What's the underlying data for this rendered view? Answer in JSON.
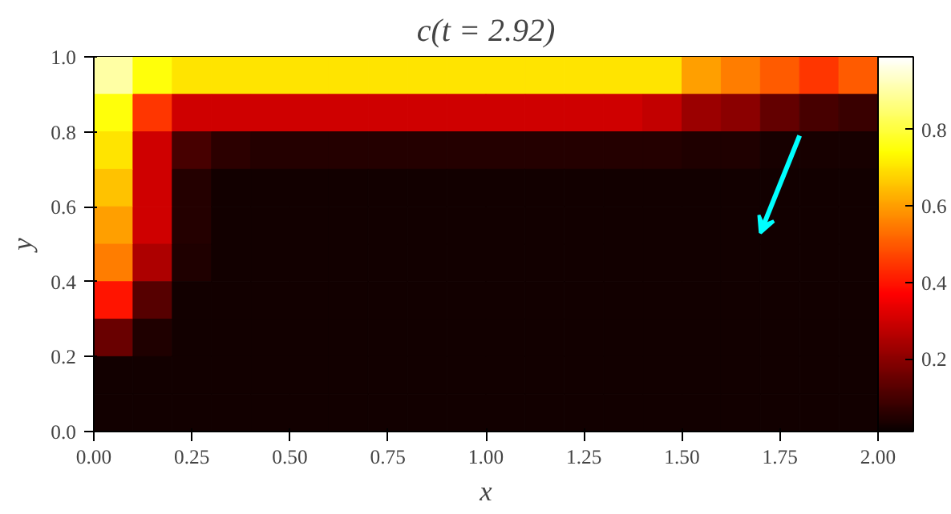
{
  "chart_data": {
    "type": "heatmap",
    "title": "c(t = 2.92)",
    "xlabel": "x",
    "ylabel": "y",
    "x": [
      0.05,
      0.15,
      0.25,
      0.35,
      0.45,
      0.55,
      0.65,
      0.75,
      0.85,
      0.95,
      1.05,
      1.15,
      1.25,
      1.35,
      1.45,
      1.55,
      1.65,
      1.75,
      1.85,
      1.95
    ],
    "y": [
      0.95,
      0.85,
      0.75,
      0.65,
      0.55,
      0.45,
      0.35,
      0.25,
      0.15,
      0.05
    ],
    "xlim": [
      0,
      2
    ],
    "ylim": [
      0,
      1
    ],
    "xticks": [
      {
        "value": 0,
        "label": "0.00"
      },
      {
        "value": 0.25,
        "label": "0.25"
      },
      {
        "value": 0.5,
        "label": "0.50"
      },
      {
        "value": 0.75,
        "label": "0.75"
      },
      {
        "value": 1,
        "label": "1.00"
      },
      {
        "value": 1.25,
        "label": "1.25"
      },
      {
        "value": 1.5,
        "label": "1.50"
      },
      {
        "value": 1.75,
        "label": "1.75"
      },
      {
        "value": 2,
        "label": "2.00"
      }
    ],
    "yticks": [
      {
        "value": 0,
        "label": "0.0"
      },
      {
        "value": 0.2,
        "label": "0.2"
      },
      {
        "value": 0.4,
        "label": "0.4"
      },
      {
        "value": 0.6,
        "label": "0.6"
      },
      {
        "value": 0.8,
        "label": "0.8"
      },
      {
        "value": 1,
        "label": "1.0"
      }
    ],
    "clim": [
      0.01,
      0.99
    ],
    "cticks": [
      0.2,
      0.4,
      0.6,
      0.8
    ],
    "cells": [
      [
        0.9,
        0.75,
        0.7,
        0.7,
        0.7,
        0.7,
        0.7,
        0.7,
        0.7,
        0.7,
        0.7,
        0.7,
        0.7,
        0.7,
        0.7,
        0.6,
        0.55,
        0.5,
        0.45,
        0.5
      ],
      [
        0.75,
        0.45,
        0.3,
        0.3,
        0.3,
        0.3,
        0.3,
        0.3,
        0.3,
        0.3,
        0.3,
        0.3,
        0.3,
        0.3,
        0.28,
        0.22,
        0.2,
        0.14,
        0.1,
        0.08
      ],
      [
        0.7,
        0.3,
        0.1,
        0.06,
        0.05,
        0.05,
        0.05,
        0.05,
        0.05,
        0.05,
        0.05,
        0.05,
        0.05,
        0.05,
        0.05,
        0.04,
        0.04,
        0.03,
        0.03,
        0.03
      ],
      [
        0.65,
        0.3,
        0.05,
        0.02,
        0.02,
        0.02,
        0.02,
        0.02,
        0.02,
        0.02,
        0.02,
        0.02,
        0.02,
        0.02,
        0.02,
        0.02,
        0.02,
        0.02,
        0.02,
        0.02
      ],
      [
        0.6,
        0.3,
        0.05,
        0.02,
        0.02,
        0.02,
        0.02,
        0.02,
        0.02,
        0.02,
        0.02,
        0.02,
        0.02,
        0.02,
        0.02,
        0.02,
        0.02,
        0.02,
        0.02,
        0.02
      ],
      [
        0.55,
        0.25,
        0.04,
        0.02,
        0.02,
        0.02,
        0.02,
        0.02,
        0.02,
        0.02,
        0.02,
        0.02,
        0.02,
        0.02,
        0.02,
        0.02,
        0.02,
        0.02,
        0.02,
        0.02
      ],
      [
        0.4,
        0.12,
        0.02,
        0.02,
        0.02,
        0.02,
        0.02,
        0.02,
        0.02,
        0.02,
        0.02,
        0.02,
        0.02,
        0.02,
        0.02,
        0.02,
        0.02,
        0.02,
        0.02,
        0.02
      ],
      [
        0.15,
        0.04,
        0.02,
        0.02,
        0.02,
        0.02,
        0.02,
        0.02,
        0.02,
        0.02,
        0.02,
        0.02,
        0.02,
        0.02,
        0.02,
        0.02,
        0.02,
        0.02,
        0.02,
        0.02
      ],
      [
        0.02,
        0.02,
        0.02,
        0.02,
        0.02,
        0.02,
        0.02,
        0.02,
        0.02,
        0.02,
        0.02,
        0.02,
        0.02,
        0.02,
        0.02,
        0.02,
        0.02,
        0.02,
        0.02,
        0.02
      ],
      [
        0.02,
        0.02,
        0.02,
        0.02,
        0.02,
        0.02,
        0.02,
        0.02,
        0.02,
        0.02,
        0.02,
        0.02,
        0.02,
        0.02,
        0.02,
        0.02,
        0.02,
        0.02,
        0.02,
        0.02
      ]
    ]
  }
}
